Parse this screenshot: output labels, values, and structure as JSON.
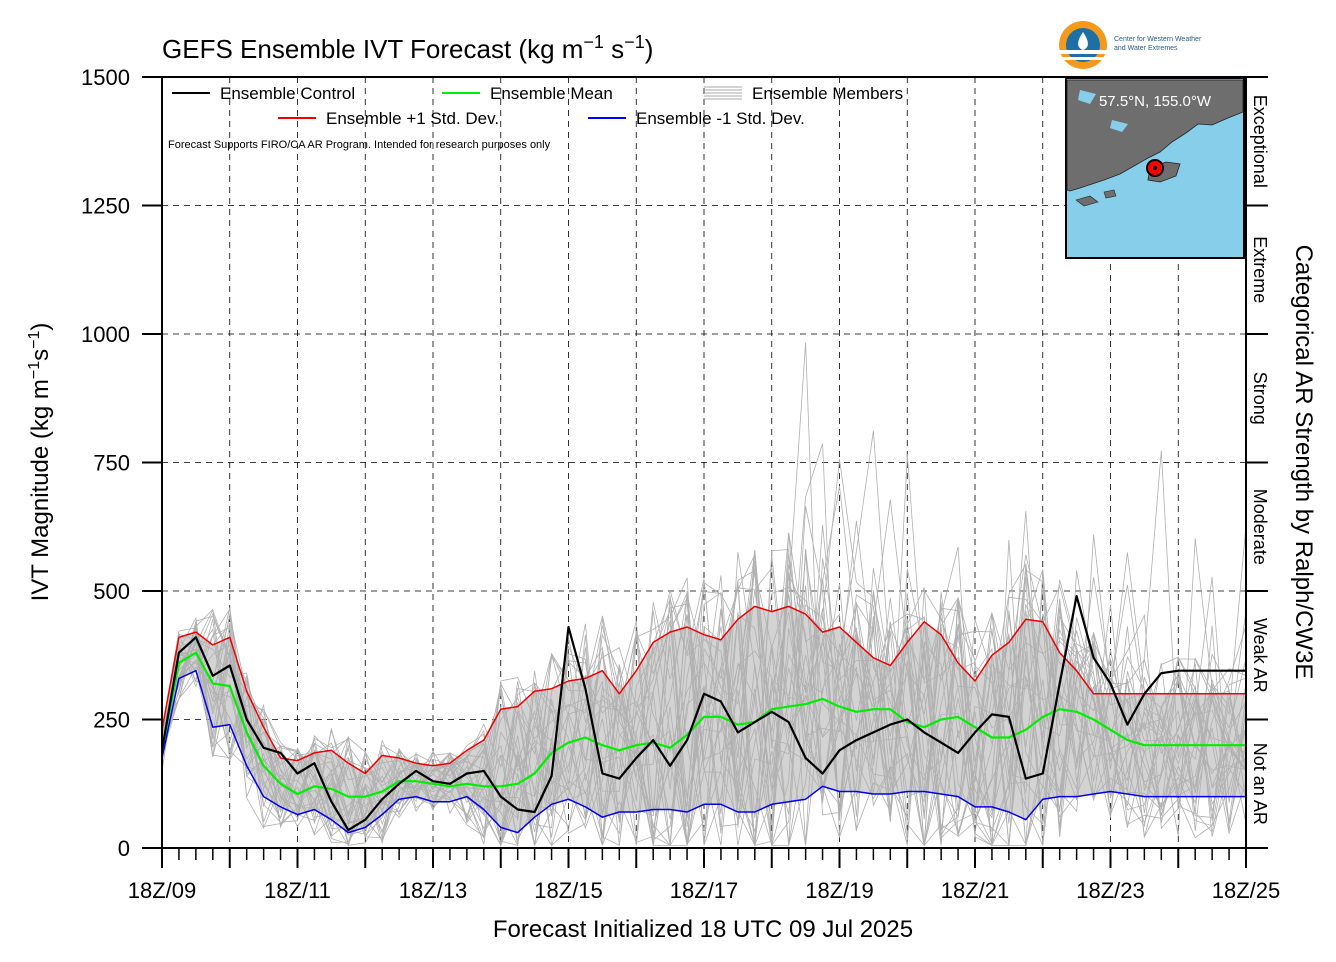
{
  "chart_data": {
    "type": "line",
    "title": "GEFS Ensemble IVT Forecast (kg m",
    "title_sup1": "−1",
    "title_mid": " s",
    "title_sup2": "−1",
    "title_end": ")",
    "xlabel": "Forecast Initialized 18 UTC 09 Jul 2025",
    "ylabel": "IVT Magnitude (kg m",
    "ylabel_sup1": "−1",
    "ylabel_mid": "s",
    "ylabel_sup2": "−1",
    "ylabel_end": ")",
    "right_title": "Categorical AR Strength by Ralph/CW3E",
    "note": "Forecast Supports FIRO/CA AR Program. Intended for research purposes only",
    "ylim": [
      0,
      1500
    ],
    "xlim": [
      0,
      16
    ],
    "yticks": [
      0,
      250,
      500,
      750,
      1000,
      1250,
      1500
    ],
    "ytick_labels": [
      "0",
      "250",
      "500",
      "750",
      "1000",
      "1250",
      "1500"
    ],
    "xticks": [
      0,
      2,
      4,
      6,
      8,
      10,
      12,
      14,
      16
    ],
    "xtick_labels": [
      "18Z/09",
      "18Z/11",
      "18Z/13",
      "18Z/15",
      "18Z/17",
      "18Z/19",
      "18Z/21",
      "18Z/23",
      "18Z/25"
    ],
    "grid": true,
    "legend": [
      {
        "label": "Ensemble Control",
        "color": "#000000"
      },
      {
        "label": "Ensemble Mean",
        "color": "#00ee00"
      },
      {
        "label": "Ensemble Members",
        "color": "#aaaaaa"
      },
      {
        "label": "Ensemble +1 Std. Dev.",
        "color": "#ee0000"
      },
      {
        "label": "Ensemble -1 Std. Dev.",
        "color": "#0000ee"
      }
    ],
    "categories": [
      {
        "label": "Not an AR",
        "range": [
          0,
          250
        ]
      },
      {
        "label": "Weak AR",
        "range": [
          250,
          500
        ]
      },
      {
        "label": "Moderate",
        "range": [
          500,
          750
        ]
      },
      {
        "label": "Strong",
        "range": [
          750,
          1000
        ]
      },
      {
        "label": "Extreme",
        "range": [
          1000,
          1250
        ]
      },
      {
        "label": "Exceptional",
        "range": [
          1250,
          1500
        ]
      }
    ],
    "location_label": "57.5°N, 155.0°W",
    "logo_text_1": "Center for Western Weather",
    "logo_text_2": "and Water Extremes",
    "series": [
      {
        "name": "Ensemble Control",
        "x": [
          0,
          0.25,
          0.5,
          0.75,
          1,
          1.25,
          1.5,
          1.75,
          2,
          2.25,
          2.5,
          2.75,
          3,
          3.25,
          3.5,
          3.75,
          4,
          4.25,
          4.5,
          4.75,
          5,
          5.25,
          5.5,
          5.75,
          6,
          6.25,
          6.5,
          6.75,
          7,
          7.25,
          7.5,
          7.75,
          8,
          8.25,
          8.5,
          8.75,
          9,
          9.25,
          9.5,
          9.75,
          10,
          10.25,
          10.5,
          10.75,
          11,
          11.25,
          11.5,
          11.75,
          12,
          12.25,
          12.5,
          12.75,
          13,
          13.25,
          13.5,
          13.75,
          14,
          14.25,
          14.5,
          14.75,
          15,
          15.25,
          15.5,
          15.75,
          16
        ],
        "values": [
          190,
          380,
          410,
          335,
          355,
          250,
          195,
          185,
          145,
          165,
          90,
          35,
          55,
          95,
          125,
          150,
          130,
          125,
          145,
          150,
          100,
          75,
          70,
          140,
          430,
          310,
          145,
          135,
          175,
          210,
          160,
          210,
          300,
          285,
          225,
          245,
          265,
          245,
          175,
          145,
          190,
          210,
          225,
          240,
          250,
          225,
          205,
          185,
          225,
          260,
          255,
          135,
          145,
          320,
          490,
          370,
          320,
          240,
          300,
          340,
          345,
          345,
          345,
          345,
          345
        ]
      },
      {
        "name": "Ensemble Mean",
        "x": [
          0,
          0.25,
          0.5,
          0.75,
          1,
          1.25,
          1.5,
          1.75,
          2,
          2.25,
          2.5,
          2.75,
          3,
          3.25,
          3.5,
          3.75,
          4,
          4.25,
          4.5,
          4.75,
          5,
          5.25,
          5.5,
          5.75,
          6,
          6.25,
          6.5,
          6.75,
          7,
          7.25,
          7.5,
          7.75,
          8,
          8.25,
          8.5,
          8.75,
          9,
          9.25,
          9.5,
          9.75,
          10,
          10.25,
          10.5,
          10.75,
          11,
          11.25,
          11.5,
          11.75,
          12,
          12.25,
          12.5,
          12.75,
          13,
          13.25,
          13.5,
          13.75,
          14,
          14.25,
          14.5,
          14.75,
          15,
          15.25,
          15.5,
          15.75,
          16
        ],
        "values": [
          190,
          360,
          380,
          320,
          315,
          225,
          160,
          125,
          105,
          120,
          115,
          100,
          100,
          110,
          130,
          130,
          125,
          120,
          125,
          120,
          120,
          125,
          145,
          185,
          205,
          215,
          200,
          190,
          200,
          205,
          195,
          220,
          255,
          255,
          240,
          245,
          270,
          275,
          280,
          290,
          275,
          265,
          270,
          270,
          245,
          235,
          250,
          255,
          235,
          215,
          215,
          230,
          255,
          270,
          265,
          250,
          230,
          210,
          200,
          200,
          200,
          200,
          200,
          200,
          200
        ]
      },
      {
        "name": "Ensemble +1 Std. Dev.",
        "x": [
          0,
          0.25,
          0.5,
          0.75,
          1,
          1.25,
          1.5,
          1.75,
          2,
          2.25,
          2.5,
          2.75,
          3,
          3.25,
          3.5,
          3.75,
          4,
          4.25,
          4.5,
          4.75,
          5,
          5.25,
          5.5,
          5.75,
          6,
          6.25,
          6.5,
          6.75,
          7,
          7.25,
          7.5,
          7.75,
          8,
          8.25,
          8.5,
          8.75,
          9,
          9.25,
          9.5,
          9.75,
          10,
          10.25,
          10.5,
          10.75,
          11,
          11.25,
          11.5,
          11.75,
          12,
          12.25,
          12.5,
          12.75,
          13,
          13.25,
          13.5,
          13.75,
          14,
          14.25,
          14.5,
          14.75,
          15,
          15.25,
          15.5,
          15.75,
          16
        ],
        "values": [
          230,
          410,
          420,
          395,
          410,
          305,
          235,
          175,
          170,
          185,
          190,
          165,
          145,
          180,
          175,
          165,
          160,
          165,
          190,
          210,
          270,
          275,
          305,
          310,
          325,
          330,
          345,
          300,
          345,
          400,
          420,
          430,
          415,
          405,
          445,
          470,
          460,
          470,
          455,
          420,
          430,
          400,
          370,
          355,
          400,
          440,
          415,
          360,
          325,
          375,
          400,
          445,
          440,
          380,
          345,
          300,
          300,
          300,
          300,
          300,
          300,
          300,
          300,
          300,
          300
        ]
      },
      {
        "name": "Ensemble -1 Std. Dev.",
        "x": [
          0,
          0.25,
          0.5,
          0.75,
          1,
          1.25,
          1.5,
          1.75,
          2,
          2.25,
          2.5,
          2.75,
          3,
          3.25,
          3.5,
          3.75,
          4,
          4.25,
          4.5,
          4.75,
          5,
          5.25,
          5.5,
          5.75,
          6,
          6.25,
          6.5,
          6.75,
          7,
          7.25,
          7.5,
          7.75,
          8,
          8.25,
          8.5,
          8.75,
          9,
          9.25,
          9.5,
          9.75,
          10,
          10.25,
          10.5,
          10.75,
          11,
          11.25,
          11.5,
          11.75,
          12,
          12.25,
          12.5,
          12.75,
          13,
          13.25,
          13.5,
          13.75,
          14,
          14.25,
          14.5,
          14.75,
          15,
          15.25,
          15.5,
          15.75,
          16
        ],
        "values": [
          175,
          330,
          345,
          235,
          240,
          160,
          100,
          80,
          65,
          75,
          55,
          30,
          40,
          65,
          95,
          100,
          90,
          90,
          100,
          75,
          40,
          30,
          60,
          85,
          95,
          80,
          60,
          70,
          70,
          75,
          75,
          70,
          85,
          85,
          70,
          70,
          85,
          90,
          95,
          120,
          110,
          110,
          105,
          105,
          110,
          110,
          105,
          100,
          80,
          80,
          70,
          55,
          95,
          100,
          100,
          105,
          110,
          105,
          100,
          100,
          100,
          100,
          100,
          100,
          100
        ]
      }
    ]
  }
}
